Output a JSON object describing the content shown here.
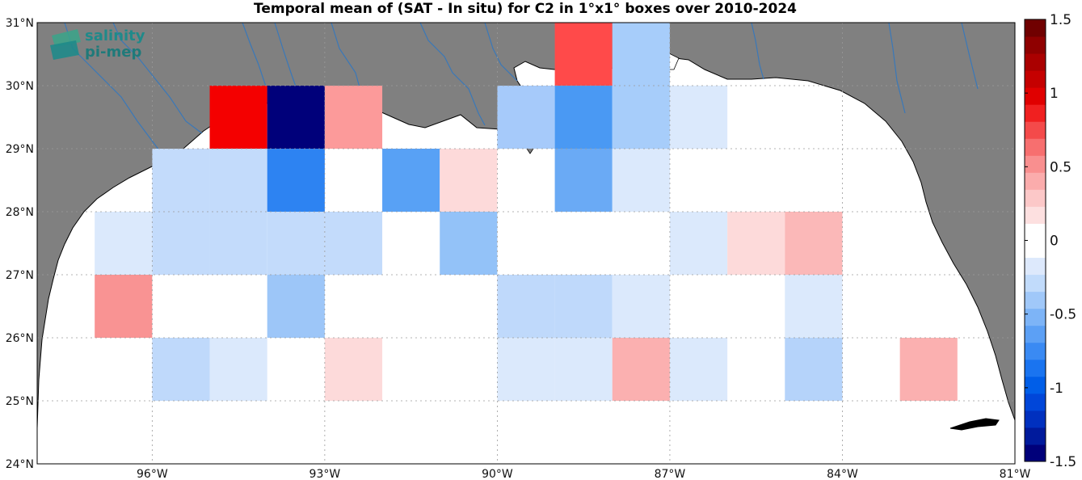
{
  "title": "Temporal mean of (SAT - In situ) for C2 in 1°x1° boxes over 2010-2024",
  "logo": {
    "line1": "salinity",
    "line2": "pi-mep"
  },
  "colors": {
    "land": "#808080",
    "ocean": "#ffffff",
    "river": "#3a78b8",
    "coast": "#000000"
  },
  "chart_data": {
    "type": "heatmap",
    "x_ticks": [
      "96°W",
      "93°W",
      "90°W",
      "87°W",
      "84°W",
      "81°W"
    ],
    "y_ticks": [
      "24°N",
      "25°N",
      "26°N",
      "27°N",
      "28°N",
      "29°N",
      "30°N",
      "31°N"
    ],
    "lon_range": [
      -98,
      -81
    ],
    "lat_range": [
      24,
      31
    ],
    "colorbar": {
      "range": [
        -1.5,
        1.5
      ],
      "ticks": [
        "1.5",
        "1",
        "0.5",
        "0",
        "-0.5",
        "-1",
        "-1.5"
      ],
      "steps": [
        "#00007a",
        "#001a9c",
        "#0030bf",
        "#0046d9",
        "#005ee8",
        "#1a74f0",
        "#3a8af3",
        "#5ca0f5",
        "#7db4f7",
        "#a0c8f9",
        "#c1dbfb",
        "#dde9fc",
        "#ffffff",
        "#ffffff",
        "#fde0e0",
        "#fcc8c8",
        "#fbacac",
        "#f98f8f",
        "#f76f6f",
        "#f44a4a",
        "#f02020",
        "#e00000",
        "#c50000",
        "#aa0000",
        "#8f0000",
        "#700000"
      ]
    },
    "cells": [
      {
        "lon": -94.5,
        "lat": 29.5,
        "value": 1.0,
        "color": "#f40000"
      },
      {
        "lon": -93.5,
        "lat": 29.5,
        "value": -1.5,
        "color": "#00007a"
      },
      {
        "lon": -92.5,
        "lat": 29.5,
        "value": 0.45,
        "color": "#fc9a9a"
      },
      {
        "lon": -89.5,
        "lat": 29.5,
        "value": -0.35,
        "color": "#a6cafa"
      },
      {
        "lon": -88.5,
        "lat": 29.5,
        "value": -0.6,
        "color": "#4a99f3"
      },
      {
        "lon": -88.5,
        "lat": 30.5,
        "value": 0.75,
        "color": "#ff4a4a"
      },
      {
        "lon": -87.5,
        "lat": 30.5,
        "value": -0.3,
        "color": "#a7cdfa"
      },
      {
        "lon": -87.5,
        "lat": 29.5,
        "value": -0.3,
        "color": "#a7cdfa"
      },
      {
        "lon": -86.5,
        "lat": 29.5,
        "value": -0.1,
        "color": "#dbe9fc"
      },
      {
        "lon": -95.5,
        "lat": 28.5,
        "value": -0.2,
        "color": "#c3dbfb"
      },
      {
        "lon": -94.5,
        "lat": 28.5,
        "value": -0.2,
        "color": "#c3dbfb"
      },
      {
        "lon": -93.5,
        "lat": 28.5,
        "value": -0.75,
        "color": "#2d83f2"
      },
      {
        "lon": -91.5,
        "lat": 28.5,
        "value": -0.55,
        "color": "#58a1f5"
      },
      {
        "lon": -90.5,
        "lat": 28.5,
        "value": 0.1,
        "color": "#fddada"
      },
      {
        "lon": -88.5,
        "lat": 28.5,
        "value": -0.5,
        "color": "#6aaaf5"
      },
      {
        "lon": -87.5,
        "lat": 28.5,
        "value": -0.1,
        "color": "#dbe9fc"
      },
      {
        "lon": -96.5,
        "lat": 27.5,
        "value": -0.1,
        "color": "#dbe9fc"
      },
      {
        "lon": -95.5,
        "lat": 27.5,
        "value": -0.2,
        "color": "#c3dbfb"
      },
      {
        "lon": -94.5,
        "lat": 27.5,
        "value": -0.2,
        "color": "#c3dbfb"
      },
      {
        "lon": -93.5,
        "lat": 27.5,
        "value": -0.2,
        "color": "#c3dbfb"
      },
      {
        "lon": -92.5,
        "lat": 27.5,
        "value": -0.2,
        "color": "#c3dbfb"
      },
      {
        "lon": -90.5,
        "lat": 27.5,
        "value": -0.4,
        "color": "#93c2f8"
      },
      {
        "lon": -86.5,
        "lat": 27.5,
        "value": -0.1,
        "color": "#dbe9fc"
      },
      {
        "lon": -85.5,
        "lat": 27.5,
        "value": 0.1,
        "color": "#fddada"
      },
      {
        "lon": -84.5,
        "lat": 27.5,
        "value": 0.3,
        "color": "#fbb8b8"
      },
      {
        "lon": -96.5,
        "lat": 26.5,
        "value": 0.45,
        "color": "#f99393"
      },
      {
        "lon": -93.5,
        "lat": 26.5,
        "value": -0.4,
        "color": "#9dc6f8"
      },
      {
        "lon": -89.5,
        "lat": 26.5,
        "value": -0.25,
        "color": "#bfd9fb"
      },
      {
        "lon": -88.5,
        "lat": 26.5,
        "value": -0.25,
        "color": "#bfd9fb"
      },
      {
        "lon": -87.5,
        "lat": 26.5,
        "value": -0.1,
        "color": "#dbe9fc"
      },
      {
        "lon": -84.5,
        "lat": 26.5,
        "value": -0.1,
        "color": "#dbe9fc"
      },
      {
        "lon": -95.5,
        "lat": 25.5,
        "value": -0.25,
        "color": "#bfd9fb"
      },
      {
        "lon": -94.5,
        "lat": 25.5,
        "value": -0.1,
        "color": "#dbe9fc"
      },
      {
        "lon": -92.5,
        "lat": 25.5,
        "value": 0.1,
        "color": "#fddada"
      },
      {
        "lon": -89.5,
        "lat": 25.5,
        "value": -0.1,
        "color": "#dbe9fc"
      },
      {
        "lon": -88.5,
        "lat": 25.5,
        "value": -0.1,
        "color": "#dbe9fc"
      },
      {
        "lon": -87.5,
        "lat": 25.5,
        "value": 0.3,
        "color": "#fbb0b0"
      },
      {
        "lon": -86.5,
        "lat": 25.5,
        "value": -0.1,
        "color": "#dbe9fc"
      },
      {
        "lon": -84.5,
        "lat": 25.5,
        "value": -0.3,
        "color": "#b5d3fa"
      },
      {
        "lon": -82.5,
        "lat": 25.5,
        "value": 0.3,
        "color": "#fbb0b0"
      }
    ]
  }
}
